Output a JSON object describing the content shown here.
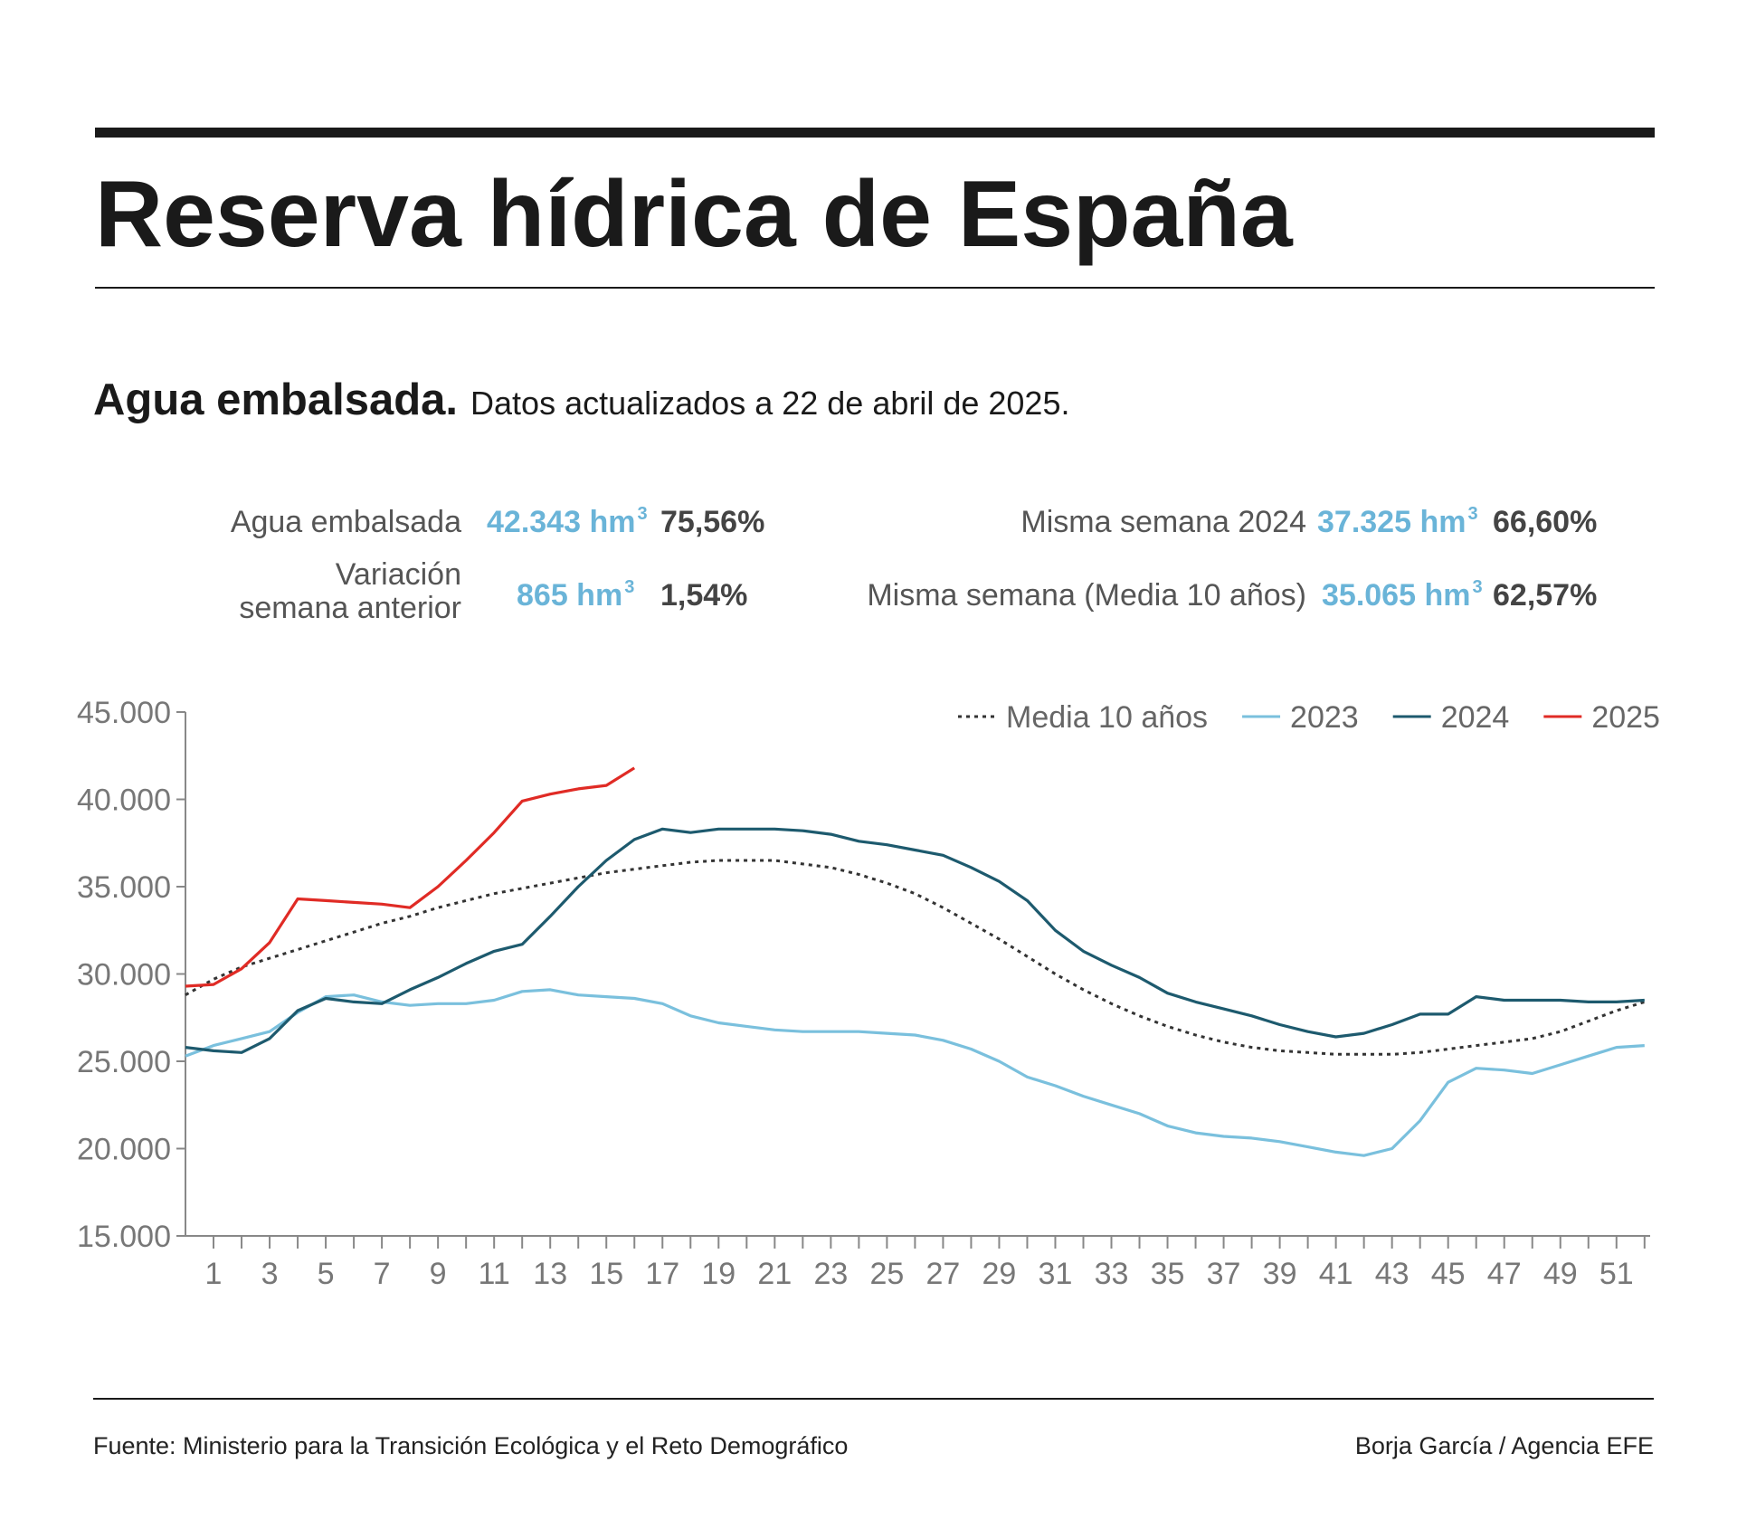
{
  "header": {
    "title": "Reserva hídrica de España",
    "subtitle_bold": "Agua embalsada.",
    "subtitle": "Datos actualizados a 22 de abril de 2025."
  },
  "stats": [
    {
      "label": [
        "Agua embalsada"
      ],
      "amount": "42.343 hm",
      "exp": "3",
      "pct": "75,56%"
    },
    {
      "label": [
        "Variación",
        "semana anterior"
      ],
      "amount": "865 hm",
      "exp": "3",
      "pct": "1,54%"
    },
    {
      "label": [
        "Misma semana 2024"
      ],
      "amount": "37.325 hm",
      "exp": "3",
      "pct": "66,60%"
    },
    {
      "label": [
        "Misma semana (Media 10 años)"
      ],
      "amount": "35.065 hm",
      "exp": "3",
      "pct": "62,57%"
    }
  ],
  "chart_data": {
    "type": "line",
    "x": [
      0,
      1,
      2,
      3,
      4,
      5,
      6,
      7,
      8,
      9,
      10,
      11,
      12,
      13,
      14,
      15,
      16,
      17,
      18,
      19,
      20,
      21,
      22,
      23,
      24,
      25,
      26,
      27,
      28,
      29,
      30,
      31,
      32,
      33,
      34,
      35,
      36,
      37,
      38,
      39,
      40,
      41,
      42,
      43,
      44,
      45,
      46,
      47,
      48,
      49,
      50,
      51,
      52
    ],
    "xlim": [
      0,
      52.2
    ],
    "xticks": [
      1,
      3,
      5,
      7,
      9,
      11,
      13,
      15,
      17,
      19,
      21,
      23,
      25,
      27,
      29,
      31,
      33,
      35,
      37,
      39,
      41,
      43,
      45,
      47,
      49,
      51
    ],
    "ylim": [
      15000,
      45000
    ],
    "yticks": [
      {
        "value": 15000,
        "label": "15.000"
      },
      {
        "value": 20000,
        "label": "20.000"
      },
      {
        "value": 25000,
        "label": "25.000"
      },
      {
        "value": 30000,
        "label": "30.000"
      },
      {
        "value": 35000,
        "label": "35.000"
      },
      {
        "value": 40000,
        "label": "40.000"
      },
      {
        "value": 45000,
        "label": "45.000"
      }
    ],
    "legend": "top-right",
    "series": [
      {
        "name": "Media 10 años",
        "color": "#333333",
        "dashed": true,
        "values": [
          28800,
          29700,
          30400,
          30900,
          31400,
          31900,
          32400,
          32900,
          33300,
          33800,
          34200,
          34600,
          34900,
          35200,
          35500,
          35800,
          36000,
          36200,
          36400,
          36500,
          36500,
          36500,
          36300,
          36100,
          35700,
          35200,
          34600,
          33800,
          32900,
          32000,
          31000,
          30000,
          29100,
          28300,
          27600,
          27000,
          26500,
          26100,
          25800,
          25600,
          25500,
          25400,
          25400,
          25400,
          25500,
          25700,
          25900,
          26100,
          26300,
          26700,
          27300,
          27900,
          28400
        ]
      },
      {
        "name": "2023",
        "color": "#7ac0dd",
        "dashed": false,
        "values": [
          25300,
          25900,
          26300,
          26700,
          27800,
          28700,
          28800,
          28400,
          28200,
          28300,
          28300,
          28500,
          29000,
          29100,
          28800,
          28700,
          28600,
          28300,
          27600,
          27200,
          27000,
          26800,
          26700,
          26700,
          26700,
          26600,
          26500,
          26200,
          25700,
          25000,
          24100,
          23600,
          23000,
          22500,
          22000,
          21300,
          20900,
          20700,
          20600,
          20400,
          20100,
          19800,
          19600,
          20000,
          21600,
          23800,
          24600,
          24500,
          24300,
          24800,
          25300,
          25800,
          25900
        ]
      },
      {
        "name": "2024",
        "color": "#1d5a6e",
        "dashed": false,
        "values": [
          25800,
          25600,
          25500,
          26300,
          27900,
          28600,
          28400,
          28300,
          29100,
          29800,
          30600,
          31300,
          31700,
          33300,
          35000,
          36500,
          37700,
          38300,
          38100,
          38300,
          38300,
          38300,
          38200,
          38000,
          37600,
          37400,
          37100,
          36800,
          36100,
          35300,
          34200,
          32500,
          31300,
          30500,
          29800,
          28900,
          28400,
          28000,
          27600,
          27100,
          26700,
          26400,
          26600,
          27100,
          27700,
          27700,
          28700,
          28500,
          28500,
          28500,
          28400,
          28400,
          28500
        ]
      },
      {
        "name": "2025",
        "color": "#e02b25",
        "dashed": false,
        "values": [
          29300,
          29400,
          30300,
          31800,
          34300,
          34200,
          34100,
          34000,
          33800,
          35000,
          36500,
          38100,
          39900,
          40300,
          40600,
          40800,
          41800,
          null,
          null,
          null,
          null,
          null,
          null,
          null,
          null,
          null,
          null,
          null,
          null,
          null,
          null,
          null,
          null,
          null,
          null,
          null,
          null,
          null,
          null,
          null,
          null,
          null,
          null,
          null,
          null,
          null,
          null,
          null,
          null,
          null,
          null,
          null,
          null
        ]
      }
    ]
  },
  "footer": {
    "source": "Fuente: Ministerio para la Transición Ecológica y el Reto Demográfico",
    "credit": "Borja García / Agencia EFE"
  }
}
